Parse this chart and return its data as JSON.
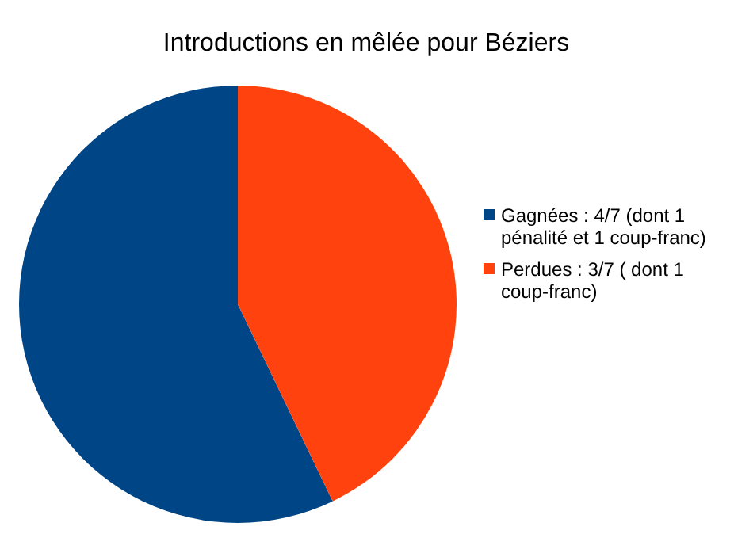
{
  "chart_data": {
    "type": "pie",
    "title": "Introductions en mêlée pour Béziers",
    "categories": [
      "Gagnées : 4/7 (dont 1 pénalité et 1 coup-franc)",
      "Perdues : 3/7 ( dont 1 coup-franc)"
    ],
    "values": [
      57.14,
      42.86
    ],
    "colors": [
      "#004586",
      "#ff420e"
    ],
    "legend": "right"
  }
}
